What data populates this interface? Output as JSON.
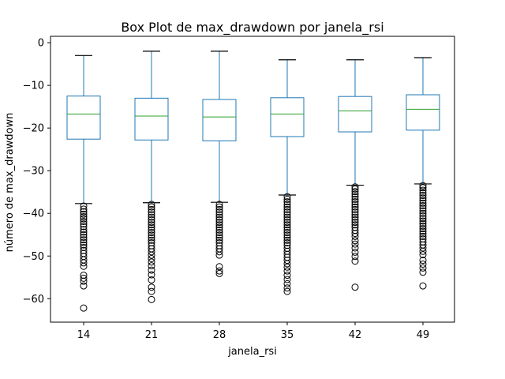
{
  "chart_data": {
    "type": "box",
    "title": "Box Plot de max_drawdown por janela_rsi",
    "xlabel": "janela_rsi",
    "ylabel": "número de max_drawdown",
    "categories": [
      "14",
      "21",
      "28",
      "35",
      "42",
      "49"
    ],
    "ylim": [
      -65.5,
      1.5
    ],
    "yticks": [
      0,
      -10,
      -20,
      -30,
      -40,
      -50,
      -60
    ],
    "ytick_labels": [
      "0",
      "−10",
      "−20",
      "−30",
      "−40",
      "−50",
      "−60"
    ],
    "grid": false,
    "colors": {
      "box": "#1f77b4",
      "median": "#2ca02c",
      "whisker_cap": "#000000",
      "outlier": "#000000"
    },
    "boxes": [
      {
        "category": "14",
        "whisker_high": -3.0,
        "q3": -12.5,
        "median": -16.7,
        "q1": -22.6,
        "whisker_low": -37.7,
        "outliers": [
          -38.3,
          -39.0,
          -39.6,
          -40.2,
          -40.8,
          -41.3,
          -41.9,
          -42.5,
          -43.1,
          -43.8,
          -44.4,
          -45.0,
          -45.6,
          -46.2,
          -46.8,
          -47.4,
          -48.0,
          -48.7,
          -49.4,
          -50.1,
          -50.9,
          -51.6,
          -52.4,
          -54.5,
          -55.2,
          -55.9,
          -57.0,
          -62.2
        ]
      },
      {
        "category": "21",
        "whisker_high": -2.0,
        "q3": -13.0,
        "median": -17.2,
        "q1": -22.8,
        "whisker_low": -37.5,
        "outliers": [
          -37.9,
          -38.5,
          -39.1,
          -39.7,
          -40.3,
          -40.9,
          -41.5,
          -42.1,
          -42.7,
          -43.3,
          -43.9,
          -44.5,
          -45.1,
          -45.7,
          -46.3,
          -46.9,
          -47.6,
          -48.3,
          -49.0,
          -49.8,
          -50.6,
          -51.4,
          -52.3,
          -53.3,
          -54.4,
          -55.6,
          -57.3,
          -58.3,
          -60.2
        ]
      },
      {
        "category": "28",
        "whisker_high": -2.0,
        "q3": -13.3,
        "median": -17.4,
        "q1": -23.0,
        "whisker_low": -37.4,
        "outliers": [
          -37.9,
          -38.5,
          -39.1,
          -39.7,
          -40.3,
          -40.9,
          -41.5,
          -42.1,
          -42.7,
          -43.3,
          -43.9,
          -44.5,
          -45.1,
          -45.7,
          -46.3,
          -46.9,
          -47.6,
          -48.3,
          -49.0,
          -49.8,
          -52.5,
          -53.5,
          -54.1
        ]
      },
      {
        "category": "35",
        "whisker_high": -4.0,
        "q3": -12.9,
        "median": -16.7,
        "q1": -22.0,
        "whisker_low": -35.7,
        "outliers": [
          -36.1,
          -36.7,
          -37.3,
          -37.9,
          -38.5,
          -39.1,
          -39.7,
          -40.3,
          -40.9,
          -41.5,
          -42.1,
          -42.7,
          -43.3,
          -43.9,
          -44.5,
          -45.1,
          -45.7,
          -46.3,
          -46.9,
          -47.5,
          -48.2,
          -48.9,
          -49.6,
          -50.3,
          -51.0,
          -51.8,
          -52.6,
          -53.5,
          -54.5,
          -55.5,
          -56.5,
          -57.5,
          -58.3
        ]
      },
      {
        "category": "42",
        "whisker_high": -4.0,
        "q3": -12.6,
        "median": -16.0,
        "q1": -20.9,
        "whisker_low": -33.4,
        "outliers": [
          -33.8,
          -34.3,
          -34.9,
          -35.5,
          -36.1,
          -36.7,
          -37.3,
          -37.9,
          -38.5,
          -39.1,
          -39.7,
          -40.3,
          -40.9,
          -41.5,
          -42.1,
          -42.7,
          -43.3,
          -44.0,
          -44.7,
          -45.4,
          -46.4,
          -47.2,
          -48.1,
          -49.1,
          -50.1,
          -51.2,
          -57.3
        ]
      },
      {
        "category": "49",
        "whisker_high": -3.5,
        "q3": -12.2,
        "median": -15.6,
        "q1": -20.5,
        "whisker_low": -33.1,
        "outliers": [
          -33.5,
          -34.0,
          -34.6,
          -35.2,
          -35.8,
          -36.4,
          -37.0,
          -37.6,
          -38.2,
          -38.8,
          -39.4,
          -40.0,
          -40.6,
          -41.2,
          -41.8,
          -42.4,
          -43.0,
          -43.6,
          -44.2,
          -44.8,
          -45.4,
          -46.0,
          -46.7,
          -47.4,
          -48.1,
          -48.9,
          -49.7,
          -51.0,
          -51.9,
          -52.8,
          -53.8,
          -57.0
        ]
      }
    ]
  }
}
